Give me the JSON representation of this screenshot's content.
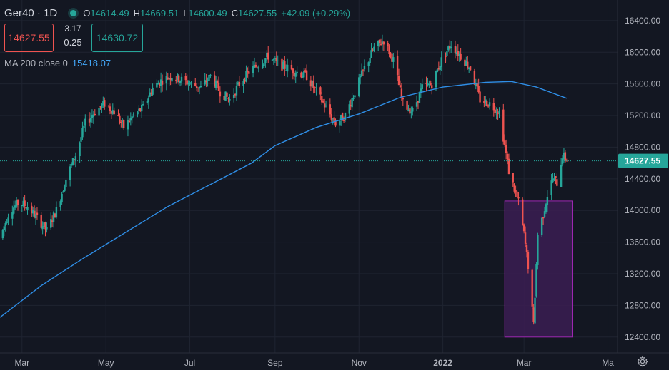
{
  "header": {
    "symbol": "Ger40 · 1D",
    "open_label": "O",
    "open": "14614.49",
    "high_label": "H",
    "high": "14669.51",
    "low_label": "L",
    "low": "14600.49",
    "close_label": "C",
    "close": "14627.55",
    "change": "+42.09 (+0.29%)"
  },
  "trade": {
    "sell": "14627.55",
    "spread_top": "3.17",
    "spread_bottom": "0.25",
    "buy": "14630.72"
  },
  "indicator": {
    "label": "MA 200 close 0",
    "value": "15418.07"
  },
  "price_label": "14627.55",
  "colors": {
    "background": "#131722",
    "up": "#26a69a",
    "down": "#ef5350",
    "ma": "#2f8ee6",
    "highlight_fill": "#3b1d52",
    "highlight_border": "#9c27b0",
    "grid": "#1f2431",
    "text": "#b2b5be"
  },
  "icons": {
    "settings": "gear-icon"
  },
  "chart_data": {
    "type": "candlestick",
    "title": "Ger40 1D",
    "y_ticks": [
      12400,
      12800,
      13200,
      13600,
      14000,
      14400,
      14800,
      15200,
      15600,
      16000,
      16400
    ],
    "y_tick_labels": [
      "12400.00",
      "12800.00",
      "13200.00",
      "13600.00",
      "14000.00",
      "14400.00",
      "14800.00",
      "15200.00",
      "15600.00",
      "16000.00",
      "16400.00"
    ],
    "ylim": [
      12200,
      16660
    ],
    "x_labels": [
      "Mar",
      "May",
      "Jul",
      "Sep",
      "Nov",
      "2022",
      "Mar",
      "Ma"
    ],
    "x_range": [
      "2021-02-13",
      "2022-05-08"
    ],
    "x_label_dates": [
      "2021-03-01",
      "2021-05-01",
      "2021-07-01",
      "2021-09-01",
      "2021-11-01",
      "2022-01-01",
      "2022-03-01",
      "2022-05-01"
    ],
    "grid": true,
    "current_price": 14627.55,
    "highlight_box": {
      "from": "2022-02-15",
      "to": "2022-04-05",
      "low": 12400,
      "high": 14120
    },
    "close_path": [
      [
        "2021-02-13",
        13650
      ],
      [
        "2021-02-20",
        14000
      ],
      [
        "2021-02-27",
        14100
      ],
      [
        "2021-03-05",
        14050
      ],
      [
        "2021-03-12",
        13900
      ],
      [
        "2021-03-19",
        13750
      ],
      [
        "2021-03-26",
        14000
      ],
      [
        "2021-04-02",
        14400
      ],
      [
        "2021-04-09",
        14700
      ],
      [
        "2021-04-16",
        15100
      ],
      [
        "2021-04-23",
        15250
      ],
      [
        "2021-04-30",
        15350
      ],
      [
        "2021-05-07",
        15250
      ],
      [
        "2021-05-14",
        15050
      ],
      [
        "2021-05-21",
        15200
      ],
      [
        "2021-05-28",
        15300
      ],
      [
        "2021-06-04",
        15550
      ],
      [
        "2021-06-11",
        15650
      ],
      [
        "2021-06-18",
        15700
      ],
      [
        "2021-06-25",
        15650
      ],
      [
        "2021-07-02",
        15600
      ],
      [
        "2021-07-09",
        15550
      ],
      [
        "2021-07-16",
        15700
      ],
      [
        "2021-07-23",
        15500
      ],
      [
        "2021-07-30",
        15400
      ],
      [
        "2021-08-06",
        15600
      ],
      [
        "2021-08-13",
        15750
      ],
      [
        "2021-08-20",
        15850
      ],
      [
        "2021-08-27",
        15950
      ],
      [
        "2021-09-03",
        15850
      ],
      [
        "2021-09-10",
        15800
      ],
      [
        "2021-09-17",
        15750
      ],
      [
        "2021-09-24",
        15700
      ],
      [
        "2021-10-01",
        15500
      ],
      [
        "2021-10-08",
        15300
      ],
      [
        "2021-10-15",
        15100
      ],
      [
        "2021-10-22",
        15200
      ],
      [
        "2021-10-29",
        15500
      ],
      [
        "2021-11-05",
        15800
      ],
      [
        "2021-11-12",
        16050
      ],
      [
        "2021-11-19",
        16150
      ],
      [
        "2021-11-26",
        15900
      ],
      [
        "2021-12-03",
        15350
      ],
      [
        "2021-12-10",
        15250
      ],
      [
        "2021-12-17",
        15550
      ],
      [
        "2021-12-24",
        15600
      ],
      [
        "2021-12-31",
        15900
      ],
      [
        "2022-01-07",
        16100
      ],
      [
        "2022-01-14",
        15950
      ],
      [
        "2022-01-21",
        15800
      ],
      [
        "2022-01-28",
        15400
      ],
      [
        "2022-02-04",
        15350
      ],
      [
        "2022-02-11",
        15250
      ],
      [
        "2022-02-18",
        14500
      ],
      [
        "2022-02-25",
        14100
      ],
      [
        "2022-03-01",
        13700
      ],
      [
        "2022-03-04",
        13300
      ],
      [
        "2022-03-08",
        12550
      ],
      [
        "2022-03-11",
        13700
      ],
      [
        "2022-03-15",
        13950
      ],
      [
        "2022-03-18",
        14200
      ],
      [
        "2022-03-22",
        14400
      ],
      [
        "2022-03-25",
        14350
      ],
      [
        "2022-03-29",
        14700
      ],
      [
        "2022-04-01",
        14627.55
      ]
    ],
    "series": [
      {
        "name": "MA 200 close 0",
        "type": "line",
        "points": [
          [
            "2021-02-13",
            12650
          ],
          [
            "2021-03-15",
            13050
          ],
          [
            "2021-04-15",
            13400
          ],
          [
            "2021-05-15",
            13720
          ],
          [
            "2021-06-15",
            14050
          ],
          [
            "2021-07-15",
            14320
          ],
          [
            "2021-08-15",
            14600
          ],
          [
            "2021-09-01",
            14820
          ],
          [
            "2021-10-01",
            15050
          ],
          [
            "2021-11-01",
            15220
          ],
          [
            "2021-12-01",
            15430
          ],
          [
            "2022-01-01",
            15560
          ],
          [
            "2022-02-01",
            15620
          ],
          [
            "2022-02-20",
            15630
          ],
          [
            "2022-03-10",
            15560
          ],
          [
            "2022-04-01",
            15418.07
          ]
        ]
      }
    ]
  }
}
